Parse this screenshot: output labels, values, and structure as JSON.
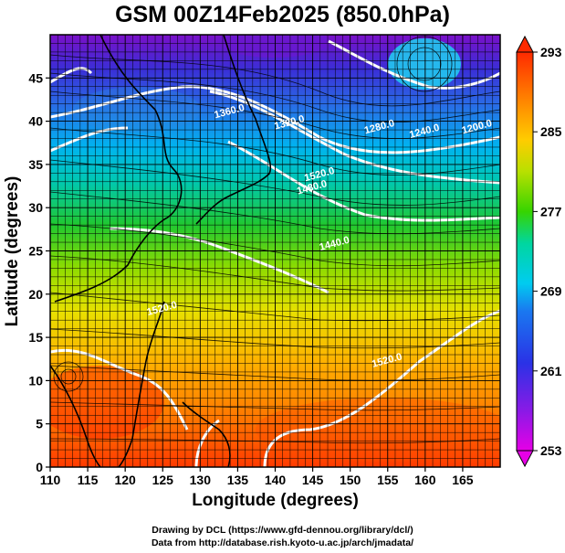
{
  "map": {
    "title": "GSM 00Z14Feb2025 (850.0hPa)",
    "xlabel": "Longitude (degrees)",
    "ylabel": "Latitude  (degrees)",
    "lon_range": [
      110,
      170
    ],
    "lat_range": [
      0,
      50
    ],
    "x_ticks": [
      "110",
      "115",
      "120",
      "125",
      "130",
      "135",
      "140",
      "145",
      "150",
      "155",
      "160",
      "165"
    ],
    "y_ticks": [
      "0",
      "5",
      "10",
      "15",
      "20",
      "25",
      "30",
      "35",
      "40",
      "45"
    ],
    "grid": true,
    "colorbar": {
      "labels": [
        "293",
        "285",
        "277",
        "269",
        "261",
        "253"
      ],
      "min": 253,
      "max": 293,
      "colors": {
        "293": "#ff2a00",
        "285": "#ff9a00",
        "277": "#36d400",
        "269": "#00ccf0",
        "261": "#2a32e6",
        "253": "#e600e6"
      }
    },
    "contour_labels": [
      "1360.0",
      "1320.0",
      "1280.0",
      "1240.0",
      "1200.0",
      "1520.0",
      "1480.0",
      "1440.0",
      "1520.0",
      "1520.0"
    ]
  },
  "credits": {
    "line1": "Drawing by DCL (https://www.gfd-dennou.org/library/dcl/)",
    "line2": "Data from http://database.rish.kyoto-u.ac.jp/arch/jmadata/"
  }
}
